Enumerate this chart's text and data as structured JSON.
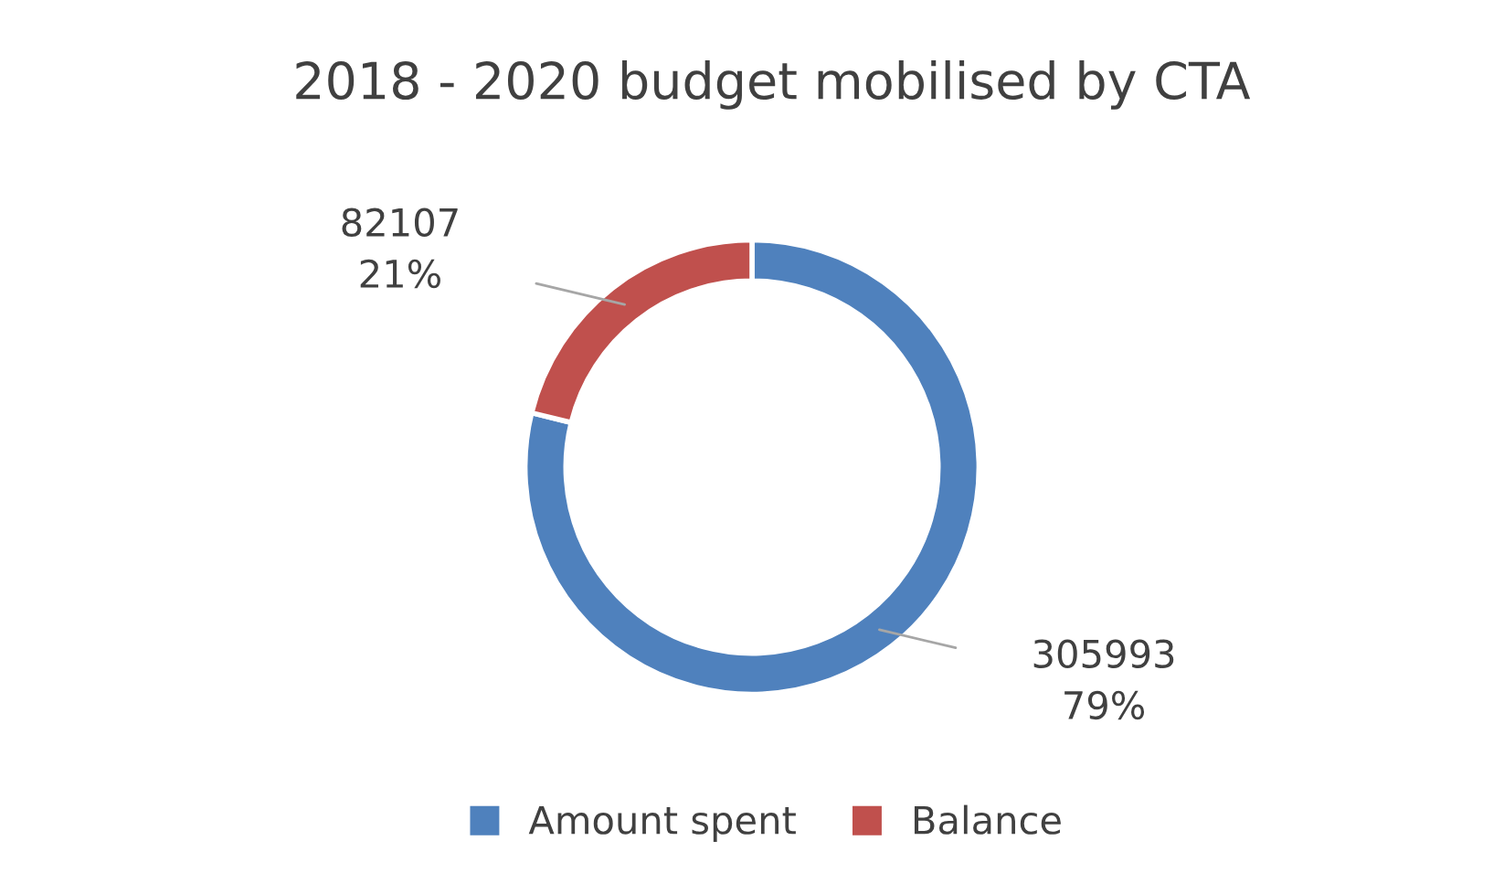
{
  "chart_data": {
    "type": "donut",
    "title": "2018 - 2020 budget mobilised by CTA",
    "categories": [
      "Amount spent",
      "Balance"
    ],
    "values": [
      305993,
      82107
    ],
    "colors": [
      "#4f81bd",
      "#c0504d"
    ],
    "value_labels": [
      "305993\n79%",
      "82107\n21%"
    ],
    "legend": "bottom"
  }
}
